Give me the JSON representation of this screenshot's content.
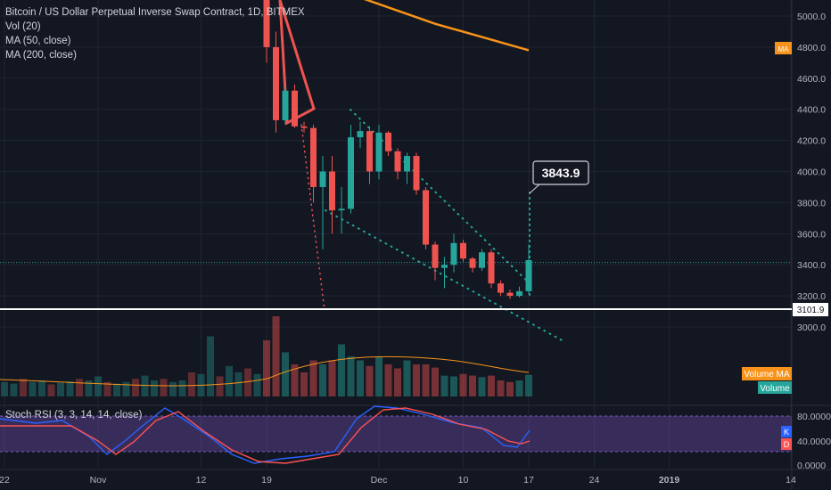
{
  "chart_title": "Bitcoin / US Dollar Perpetual Inverse Swap Contract, 1D, BITMEX",
  "indicators": {
    "vol": "Vol (20)",
    "ma50": "MA (50, close)",
    "ma200": "MA (200, close)",
    "stoch": "Stoch RSI (3, 3, 14, 14, close)"
  },
  "colors": {
    "background": "#131722",
    "up": "#26a69a",
    "down": "#ef5350",
    "ma": "#f7931a",
    "stoch_k": "#2962ff",
    "stoch_d": "#ff5252",
    "stoch_band": "#7e57c2",
    "callout_line": "#ffffff"
  },
  "badges": {
    "ma_badge": "MA",
    "volume_ma": "Volume MA",
    "volume": "Volume",
    "k": "K",
    "d": "D"
  },
  "price_callout": "3843.9",
  "level_label": "3101.9",
  "chart_data": [
    {
      "type": "candlestick",
      "title": "Bitcoin / US Dollar Perpetual Inverse Swap Contract, 1D, BITMEX",
      "y_ticks": [
        3000,
        3200,
        3400,
        3600,
        3800,
        4000,
        4200,
        4400,
        4600,
        4800,
        5000
      ],
      "x_ticks": [
        {
          "label": "22",
          "date": "2018-10-22"
        },
        {
          "label": "Nov",
          "date": "2018-11-01"
        },
        {
          "label": "12",
          "date": "2018-11-12"
        },
        {
          "label": "19",
          "date": "2018-11-19"
        },
        {
          "label": "Dec",
          "date": "2018-12-01"
        },
        {
          "label": "10",
          "date": "2018-12-10"
        },
        {
          "label": "17",
          "date": "2018-12-17"
        },
        {
          "label": "24",
          "date": "2018-12-24"
        },
        {
          "label": "2019",
          "date": "2019-01-01"
        },
        {
          "label": "14",
          "date": "2019-01-14"
        }
      ],
      "candles": [
        {
          "date": "2018-11-19",
          "open": 5550,
          "high": 5600,
          "low": 4700,
          "close": 4800
        },
        {
          "date": "2018-11-20",
          "open": 4800,
          "high": 4900,
          "low": 4250,
          "close": 4330
        },
        {
          "date": "2018-11-21",
          "open": 4330,
          "high": 4550,
          "low": 4300,
          "close": 4520
        },
        {
          "date": "2018-11-22",
          "open": 4520,
          "high": 4560,
          "low": 4280,
          "close": 4290
        },
        {
          "date": "2018-11-23",
          "open": 4290,
          "high": 4320,
          "low": 4250,
          "close": 4280
        },
        {
          "date": "2018-11-24",
          "open": 4280,
          "high": 4300,
          "low": 3800,
          "close": 3900
        },
        {
          "date": "2018-11-25",
          "open": 3900,
          "high": 4100,
          "low": 3500,
          "close": 4000
        },
        {
          "date": "2018-11-26",
          "open": 4000,
          "high": 4100,
          "low": 3600,
          "close": 3750
        },
        {
          "date": "2018-11-27",
          "open": 3750,
          "high": 3900,
          "low": 3600,
          "close": 3760
        },
        {
          "date": "2018-11-28",
          "open": 3760,
          "high": 4300,
          "low": 3730,
          "close": 4220
        },
        {
          "date": "2018-11-29",
          "open": 4220,
          "high": 4320,
          "low": 4150,
          "close": 4260
        },
        {
          "date": "2018-11-30",
          "open": 4260,
          "high": 4290,
          "low": 3920,
          "close": 4000
        },
        {
          "date": "2018-12-01",
          "open": 4000,
          "high": 4300,
          "low": 3950,
          "close": 4250
        },
        {
          "date": "2018-12-02",
          "open": 4250,
          "high": 4260,
          "low": 4100,
          "close": 4130
        },
        {
          "date": "2018-12-03",
          "open": 4130,
          "high": 4150,
          "low": 3950,
          "close": 4000
        },
        {
          "date": "2018-12-04",
          "open": 4000,
          "high": 4120,
          "low": 3920,
          "close": 4100
        },
        {
          "date": "2018-12-05",
          "open": 4100,
          "high": 4120,
          "low": 3850,
          "close": 3880
        },
        {
          "date": "2018-12-06",
          "open": 3880,
          "high": 3900,
          "low": 3500,
          "close": 3530
        },
        {
          "date": "2018-12-07",
          "open": 3530,
          "high": 3550,
          "low": 3300,
          "close": 3380
        },
        {
          "date": "2018-12-08",
          "open": 3380,
          "high": 3450,
          "low": 3250,
          "close": 3400
        },
        {
          "date": "2018-12-09",
          "open": 3400,
          "high": 3600,
          "low": 3350,
          "close": 3540
        },
        {
          "date": "2018-12-10",
          "open": 3540,
          "high": 3560,
          "low": 3420,
          "close": 3440
        },
        {
          "date": "2018-12-11",
          "open": 3440,
          "high": 3450,
          "low": 3350,
          "close": 3380
        },
        {
          "date": "2018-12-12",
          "open": 3380,
          "high": 3500,
          "low": 3360,
          "close": 3480
        },
        {
          "date": "2018-12-13",
          "open": 3480,
          "high": 3500,
          "low": 3250,
          "close": 3280
        },
        {
          "date": "2018-12-14",
          "open": 3280,
          "high": 3300,
          "low": 3200,
          "close": 3220
        },
        {
          "date": "2018-12-15",
          "open": 3220,
          "high": 3240,
          "low": 3180,
          "close": 3200
        },
        {
          "date": "2018-12-16",
          "open": 3200,
          "high": 3260,
          "low": 3190,
          "close": 3230
        },
        {
          "date": "2018-12-17",
          "open": 3230,
          "high": 3530,
          "low": 3210,
          "close": 3430
        }
      ],
      "volume": [
        70,
        100,
        55,
        40,
        30,
        45,
        40,
        45,
        65,
        50,
        45,
        38,
        50,
        40,
        35,
        45,
        40,
        40,
        36,
        26,
        25,
        28,
        26,
        24,
        26,
        20,
        18,
        20,
        27
      ],
      "volume_before": [
        20,
        18,
        22,
        15,
        17,
        20,
        14,
        18,
        16,
        22,
        18,
        20,
        15,
        17,
        19,
        22,
        20,
        25,
        18,
        16,
        18,
        22,
        26,
        20,
        22,
        18,
        20,
        30,
        28,
        75,
        25,
        38,
        30,
        35,
        28
      ],
      "ma50": [
        {
          "date": "2018-11-17",
          "value": 5400
        },
        {
          "date": "2018-11-28",
          "value": 5140
        },
        {
          "date": "2018-12-07",
          "value": 4950
        },
        {
          "date": "2018-12-17",
          "value": 4780
        }
      ],
      "horizontal_level": 3101.9,
      "last_price_line": 3415,
      "callout_value": 3843.9,
      "stoch_rsi_levels": [
        "80.0000",
        "40.0000",
        "0.0000"
      ]
    }
  ]
}
